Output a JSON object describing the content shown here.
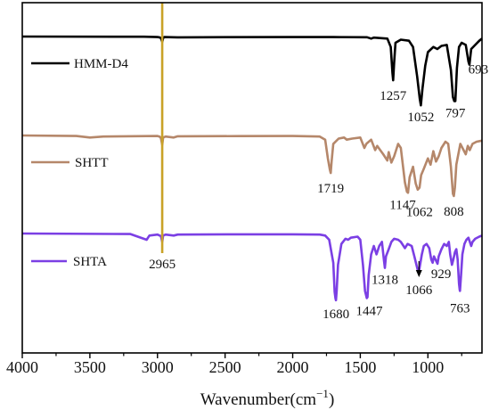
{
  "chart_data": {
    "type": "line",
    "title": "",
    "xlabel": "Wavenumber(cm",
    "xlabel_sup": "−1",
    "xlabel_close": ")",
    "ylabel": "",
    "xlim": [
      4000,
      600
    ],
    "x_reversed": true,
    "x_ticks": [
      4000,
      3500,
      3000,
      2500,
      2000,
      1500,
      1000
    ],
    "y_ticks_shown": false,
    "reference_line": {
      "x": 2965,
      "label": "2965",
      "color": "#c9a227"
    },
    "series": [
      {
        "name": "HMM-D4",
        "color": "#000000",
        "baseline": 0,
        "points": [
          [
            4000,
            0
          ],
          [
            3100,
            0.2
          ],
          [
            3000,
            0.5
          ],
          [
            2985,
            0.8
          ],
          [
            2975,
            1.5
          ],
          [
            2965,
            5
          ],
          [
            2958,
            1.5
          ],
          [
            2950,
            0.5
          ],
          [
            2850,
            0.8
          ],
          [
            2500,
            0.6
          ],
          [
            2000,
            0.5
          ],
          [
            1700,
            0.5
          ],
          [
            1450,
            0.7
          ],
          [
            1420,
            2
          ],
          [
            1400,
            1
          ],
          [
            1300,
            2
          ],
          [
            1275,
            10
          ],
          [
            1262,
            35
          ],
          [
            1257,
            42
          ],
          [
            1250,
            25
          ],
          [
            1240,
            6
          ],
          [
            1200,
            3
          ],
          [
            1140,
            4
          ],
          [
            1110,
            10
          ],
          [
            1080,
            38
          ],
          [
            1060,
            60
          ],
          [
            1052,
            66
          ],
          [
            1040,
            50
          ],
          [
            1020,
            28
          ],
          [
            1000,
            15
          ],
          [
            960,
            10
          ],
          [
            930,
            12
          ],
          [
            900,
            9
          ],
          [
            860,
            8
          ],
          [
            830,
            32
          ],
          [
            815,
            58
          ],
          [
            805,
            62
          ],
          [
            797,
            62
          ],
          [
            785,
            30
          ],
          [
            770,
            10
          ],
          [
            750,
            6
          ],
          [
            720,
            8
          ],
          [
            700,
            24
          ],
          [
            693,
            27
          ],
          [
            680,
            12
          ],
          [
            650,
            8
          ],
          [
            620,
            4
          ],
          [
            600,
            2
          ]
        ],
        "peak_labels": [
          {
            "x": 1257,
            "label": "1257"
          },
          {
            "x": 1052,
            "label": "1052"
          },
          {
            "x": 797,
            "label": "797"
          },
          {
            "x": 693,
            "label": "693"
          }
        ]
      },
      {
        "name": "SHTT",
        "color": "#b5876a",
        "baseline": 0,
        "points": [
          [
            4000,
            0
          ],
          [
            3600,
            0.5
          ],
          [
            3500,
            2
          ],
          [
            3400,
            1
          ],
          [
            3000,
            0.5
          ],
          [
            2985,
            1
          ],
          [
            2975,
            2.5
          ],
          [
            2965,
            9
          ],
          [
            2958,
            2
          ],
          [
            2940,
            1
          ],
          [
            2880,
            2
          ],
          [
            2850,
            0.8
          ],
          [
            2400,
            0.6
          ],
          [
            2000,
            0.5
          ],
          [
            1800,
            1
          ],
          [
            1760,
            4
          ],
          [
            1740,
            22
          ],
          [
            1725,
            33
          ],
          [
            1719,
            36
          ],
          [
            1712,
            25
          ],
          [
            1700,
            8
          ],
          [
            1660,
            3
          ],
          [
            1620,
            2
          ],
          [
            1600,
            4
          ],
          [
            1560,
            3
          ],
          [
            1500,
            2
          ],
          [
            1470,
            12
          ],
          [
            1455,
            8
          ],
          [
            1420,
            4
          ],
          [
            1390,
            14
          ],
          [
            1375,
            10
          ],
          [
            1330,
            18
          ],
          [
            1300,
            24
          ],
          [
            1290,
            16
          ],
          [
            1270,
            26
          ],
          [
            1250,
            20
          ],
          [
            1220,
            8
          ],
          [
            1200,
            12
          ],
          [
            1170,
            45
          ],
          [
            1155,
            54
          ],
          [
            1147,
            55
          ],
          [
            1135,
            40
          ],
          [
            1110,
            30
          ],
          [
            1090,
            46
          ],
          [
            1075,
            52
          ],
          [
            1062,
            50
          ],
          [
            1050,
            38
          ],
          [
            1030,
            32
          ],
          [
            1000,
            22
          ],
          [
            980,
            28
          ],
          [
            960,
            15
          ],
          [
            940,
            25
          ],
          [
            920,
            20
          ],
          [
            900,
            12
          ],
          [
            870,
            6
          ],
          [
            850,
            8
          ],
          [
            830,
            30
          ],
          [
            815,
            56
          ],
          [
            808,
            58
          ],
          [
            800,
            50
          ],
          [
            790,
            28
          ],
          [
            760,
            8
          ],
          [
            720,
            18
          ],
          [
            705,
            10
          ],
          [
            690,
            14
          ],
          [
            670,
            8
          ],
          [
            640,
            6
          ],
          [
            600,
            5
          ]
        ],
        "peak_labels": [
          {
            "x": 1719,
            "label": "1719"
          },
          {
            "x": 1147,
            "label": "1147"
          },
          {
            "x": 1062,
            "label": "1062"
          },
          {
            "x": 808,
            "label": "808"
          }
        ]
      },
      {
        "name": "SHTA",
        "color": "#7b3fe4",
        "baseline": 0,
        "points": [
          [
            4000,
            0
          ],
          [
            3200,
            0.5
          ],
          [
            3080,
            6
          ],
          [
            3060,
            2
          ],
          [
            3000,
            1
          ],
          [
            2975,
            2.5
          ],
          [
            2965,
            8
          ],
          [
            2958,
            2
          ],
          [
            2940,
            1
          ],
          [
            2880,
            2
          ],
          [
            2850,
            1
          ],
          [
            2400,
            0.8
          ],
          [
            2000,
            0.8
          ],
          [
            1800,
            1
          ],
          [
            1760,
            2
          ],
          [
            1730,
            6
          ],
          [
            1700,
            28
          ],
          [
            1690,
            56
          ],
          [
            1684,
            62
          ],
          [
            1680,
            64
          ],
          [
            1675,
            55
          ],
          [
            1665,
            30
          ],
          [
            1640,
            10
          ],
          [
            1610,
            5
          ],
          [
            1590,
            6
          ],
          [
            1570,
            4
          ],
          [
            1520,
            3
          ],
          [
            1500,
            6
          ],
          [
            1480,
            30
          ],
          [
            1465,
            55
          ],
          [
            1452,
            62
          ],
          [
            1447,
            61
          ],
          [
            1438,
            40
          ],
          [
            1420,
            20
          ],
          [
            1400,
            12
          ],
          [
            1380,
            20
          ],
          [
            1360,
            12
          ],
          [
            1340,
            8
          ],
          [
            1325,
            26
          ],
          [
            1318,
            33
          ],
          [
            1310,
            22
          ],
          [
            1290,
            15
          ],
          [
            1270,
            8
          ],
          [
            1250,
            5
          ],
          [
            1220,
            6
          ],
          [
            1200,
            8
          ],
          [
            1170,
            14
          ],
          [
            1150,
            10
          ],
          [
            1120,
            12
          ],
          [
            1100,
            22
          ],
          [
            1085,
            30
          ],
          [
            1075,
            35
          ],
          [
            1066,
            36
          ],
          [
            1058,
            30
          ],
          [
            1045,
            20
          ],
          [
            1030,
            12
          ],
          [
            1010,
            10
          ],
          [
            990,
            14
          ],
          [
            975,
            25
          ],
          [
            965,
            28
          ],
          [
            955,
            22
          ],
          [
            940,
            26
          ],
          [
            929,
            29
          ],
          [
            920,
            22
          ],
          [
            900,
            15
          ],
          [
            880,
            10
          ],
          [
            860,
            12
          ],
          [
            845,
            8
          ],
          [
            835,
            20
          ],
          [
            822,
            30
          ],
          [
            812,
            25
          ],
          [
            800,
            18
          ],
          [
            790,
            15
          ],
          [
            780,
            25
          ],
          [
            770,
            48
          ],
          [
            765,
            54
          ],
          [
            763,
            55
          ],
          [
            755,
            40
          ],
          [
            745,
            20
          ],
          [
            730,
            10
          ],
          [
            715,
            6
          ],
          [
            700,
            4
          ],
          [
            680,
            12
          ],
          [
            670,
            8
          ],
          [
            650,
            5
          ],
          [
            620,
            3
          ],
          [
            600,
            2
          ]
        ],
        "peak_labels": [
          {
            "x": 1680,
            "label": "1680"
          },
          {
            "x": 1447,
            "label": "1447"
          },
          {
            "x": 1318,
            "label": "1318"
          },
          {
            "x": 1066,
            "label": "1066"
          },
          {
            "x": 929,
            "label": "929"
          },
          {
            "x": 763,
            "label": "763"
          }
        ]
      }
    ]
  }
}
